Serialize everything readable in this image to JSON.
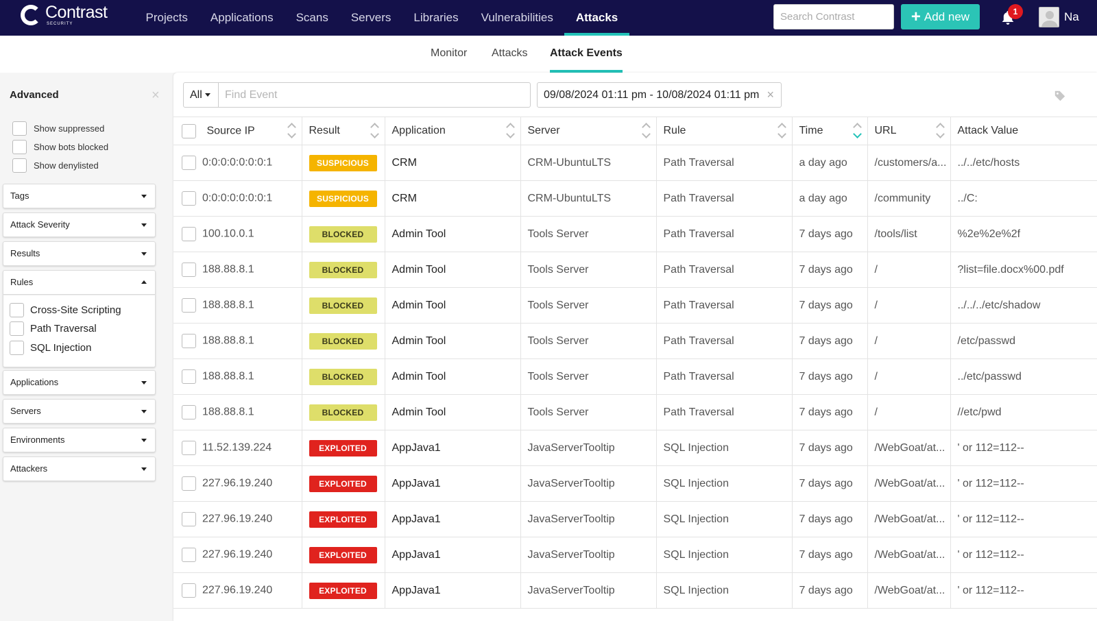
{
  "topnav": {
    "logo_word": "Contrast",
    "logo_sub": "SECURITY",
    "items": [
      "Projects",
      "Applications",
      "Scans",
      "Servers",
      "Libraries",
      "Vulnerabilities",
      "Attacks"
    ],
    "active": "Attacks",
    "search_placeholder": "Search Contrast",
    "add_label": "Add new",
    "notification_count": "1",
    "user_name": "Na"
  },
  "subnav": {
    "tabs": [
      "Monitor",
      "Attacks",
      "Attack Events"
    ],
    "active": "Attack Events"
  },
  "sidebar": {
    "title": "Advanced",
    "show_options": [
      "Show suppressed",
      "Show bots blocked",
      "Show denylisted"
    ],
    "filters": [
      "Tags",
      "Attack Severity",
      "Results",
      "Rules",
      "Applications",
      "Servers",
      "Environments",
      "Attackers"
    ],
    "rules_options": [
      "Cross-Site Scripting",
      "Path Traversal",
      "SQL Injection"
    ]
  },
  "toolbar": {
    "scope": "All",
    "find_placeholder": "Find Event",
    "date_range": "09/08/2024 01:11 pm - 10/08/2024 01:11 pm"
  },
  "colors": {
    "nav_bg": "#14114a",
    "accent": "#23c2b8",
    "suspicious": "#f5b400",
    "blocked": "#dede6a",
    "exploited": "#e0231e"
  },
  "table": {
    "columns": [
      "Source IP",
      "Result",
      "Application",
      "Server",
      "Rule",
      "Time",
      "URL",
      "Attack Value"
    ],
    "rows": [
      {
        "ip": "0:0:0:0:0:0:0:1",
        "result": "SUSPICIOUS",
        "app": "CRM",
        "server": "CRM-UbuntuLTS",
        "rule": "Path Traversal",
        "time": "a day ago",
        "url": "/customers/a...",
        "value": "../../etc/hosts"
      },
      {
        "ip": "0:0:0:0:0:0:0:1",
        "result": "SUSPICIOUS",
        "app": "CRM",
        "server": "CRM-UbuntuLTS",
        "rule": "Path Traversal",
        "time": "a day ago",
        "url": "/community",
        "value": "../C:"
      },
      {
        "ip": "100.10.0.1",
        "result": "BLOCKED",
        "app": "Admin Tool",
        "server": "Tools Server",
        "rule": "Path Traversal",
        "time": "7 days ago",
        "url": "/tools/list",
        "value": "%2e%2e%2f"
      },
      {
        "ip": "188.88.8.1",
        "result": "BLOCKED",
        "app": "Admin Tool",
        "server": "Tools Server",
        "rule": "Path Traversal",
        "time": "7 days ago",
        "url": "/",
        "value": "?list=file.docx%00.pdf"
      },
      {
        "ip": "188.88.8.1",
        "result": "BLOCKED",
        "app": "Admin Tool",
        "server": "Tools Server",
        "rule": "Path Traversal",
        "time": "7 days ago",
        "url": "/",
        "value": "../../../etc/shadow"
      },
      {
        "ip": "188.88.8.1",
        "result": "BLOCKED",
        "app": "Admin Tool",
        "server": "Tools Server",
        "rule": "Path Traversal",
        "time": "7 days ago",
        "url": "/",
        "value": "/etc/passwd"
      },
      {
        "ip": "188.88.8.1",
        "result": "BLOCKED",
        "app": "Admin Tool",
        "server": "Tools Server",
        "rule": "Path Traversal",
        "time": "7 days ago",
        "url": "/",
        "value": "../etc/passwd"
      },
      {
        "ip": "188.88.8.1",
        "result": "BLOCKED",
        "app": "Admin Tool",
        "server": "Tools Server",
        "rule": "Path Traversal",
        "time": "7 days ago",
        "url": "/",
        "value": "//etc/pwd"
      },
      {
        "ip": "11.52.139.224",
        "result": "EXPLOITED",
        "app": "AppJava1",
        "server": "JavaServerTooltip",
        "rule": "SQL Injection",
        "time": "7 days ago",
        "url": "/WebGoat/at...",
        "value": "' or 112=112--"
      },
      {
        "ip": "227.96.19.240",
        "result": "EXPLOITED",
        "app": "AppJava1",
        "server": "JavaServerTooltip",
        "rule": "SQL Injection",
        "time": "7 days ago",
        "url": "/WebGoat/at...",
        "value": "' or 112=112--"
      },
      {
        "ip": "227.96.19.240",
        "result": "EXPLOITED",
        "app": "AppJava1",
        "server": "JavaServerTooltip",
        "rule": "SQL Injection",
        "time": "7 days ago",
        "url": "/WebGoat/at...",
        "value": "' or 112=112--"
      },
      {
        "ip": "227.96.19.240",
        "result": "EXPLOITED",
        "app": "AppJava1",
        "server": "JavaServerTooltip",
        "rule": "SQL Injection",
        "time": "7 days ago",
        "url": "/WebGoat/at...",
        "value": "' or 112=112--"
      },
      {
        "ip": "227.96.19.240",
        "result": "EXPLOITED",
        "app": "AppJava1",
        "server": "JavaServerTooltip",
        "rule": "SQL Injection",
        "time": "7 days ago",
        "url": "/WebGoat/at...",
        "value": "' or 112=112--"
      }
    ]
  }
}
